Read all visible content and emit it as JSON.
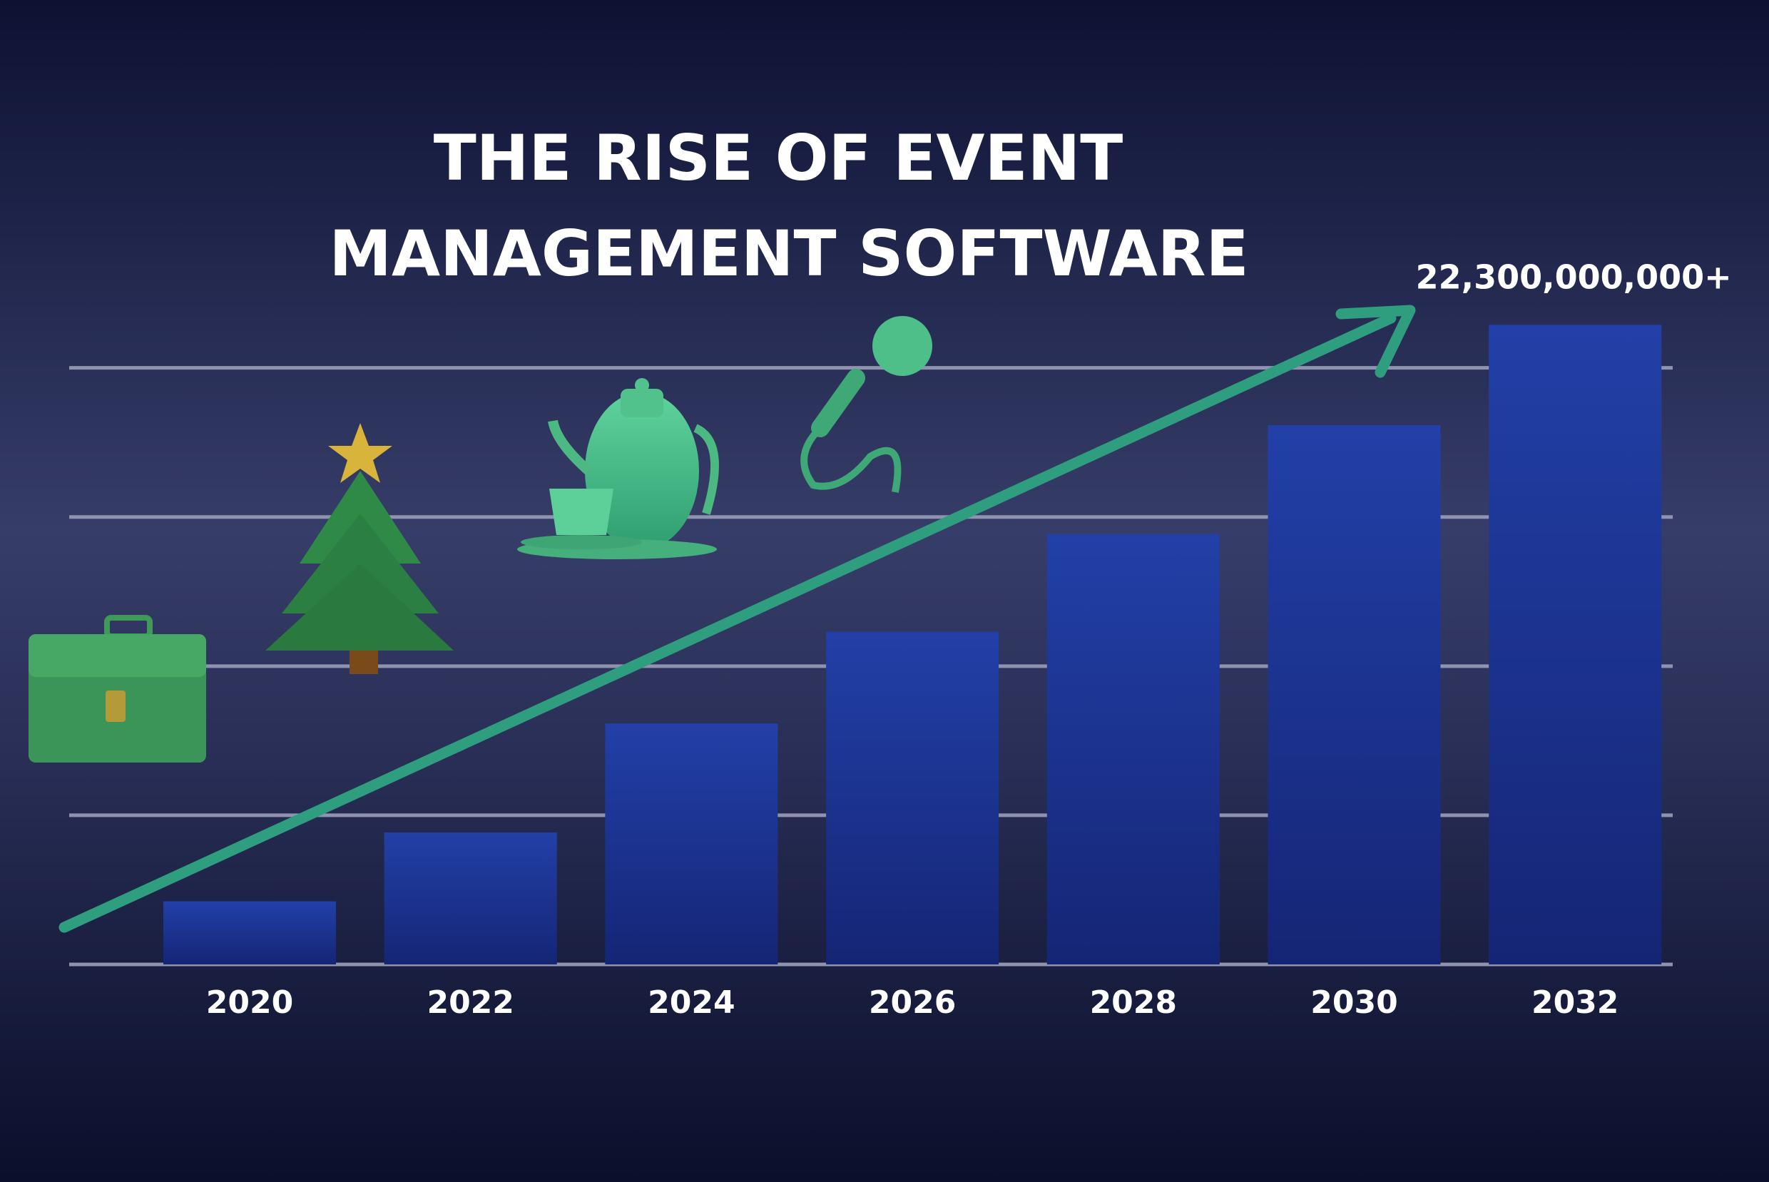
{
  "chart_data": {
    "type": "bar",
    "title": [
      "THE RISE OF EVENT",
      "MANAGEMENT SOFTWARE"
    ],
    "categories": [
      "2020",
      "2022",
      "2024",
      "2026",
      "2028",
      "2030",
      "2032"
    ],
    "values": [
      2200000000,
      4600000000,
      8400000000,
      11600000000,
      15000000000,
      18800000000,
      22300000000
    ],
    "value_labels": [
      null,
      null,
      null,
      null,
      null,
      null,
      "22,300,000,000+"
    ],
    "color": "#1f3494",
    "arrow_color": "#2f9e7f",
    "ylim": [
      0,
      24000000000
    ],
    "yticks": [
      0,
      5200000000,
      10400000000,
      15600000000,
      20800000000
    ],
    "grid": true
  }
}
